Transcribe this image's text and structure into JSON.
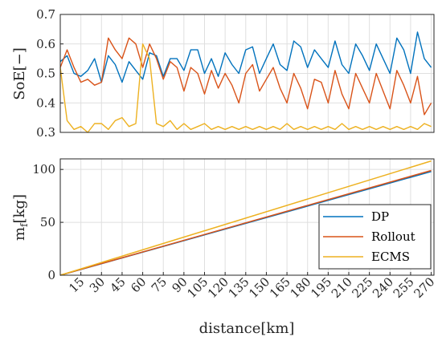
{
  "chart_data": [
    {
      "type": "line",
      "title": "",
      "xlabel": "",
      "ylabel": "SoE[−]",
      "xlim": [
        0,
        272
      ],
      "ylim": [
        0.3,
        0.7
      ],
      "y_ticks": [
        "0.3",
        "0.4",
        "0.5",
        "0.6",
        "0.7"
      ],
      "grid": true,
      "legend": "none",
      "x": [
        0,
        5,
        10,
        15,
        20,
        25,
        30,
        35,
        40,
        45,
        50,
        55,
        60,
        65,
        70,
        75,
        80,
        85,
        90,
        95,
        100,
        105,
        110,
        115,
        120,
        125,
        130,
        135,
        140,
        145,
        150,
        155,
        160,
        165,
        170,
        175,
        180,
        185,
        190,
        195,
        200,
        205,
        210,
        215,
        220,
        225,
        230,
        235,
        240,
        245,
        250,
        255,
        260,
        265,
        270
      ],
      "series": [
        {
          "color": "#0072BD",
          "values": [
            0.54,
            0.56,
            0.5,
            0.49,
            0.51,
            0.55,
            0.47,
            0.56,
            0.53,
            0.47,
            0.54,
            0.51,
            0.48,
            0.57,
            0.56,
            0.49,
            0.55,
            0.55,
            0.51,
            0.58,
            0.58,
            0.5,
            0.55,
            0.49,
            0.57,
            0.53,
            0.5,
            0.58,
            0.59,
            0.5,
            0.55,
            0.6,
            0.53,
            0.51,
            0.61,
            0.59,
            0.52,
            0.58,
            0.55,
            0.52,
            0.61,
            0.53,
            0.5,
            0.6,
            0.56,
            0.51,
            0.6,
            0.55,
            0.5,
            0.62,
            0.58,
            0.5,
            0.64,
            0.55,
            0.52
          ]
        },
        {
          "color": "#D95319",
          "values": [
            0.52,
            0.58,
            0.52,
            0.47,
            0.48,
            0.46,
            0.47,
            0.62,
            0.58,
            0.55,
            0.62,
            0.6,
            0.52,
            0.6,
            0.55,
            0.48,
            0.54,
            0.52,
            0.44,
            0.52,
            0.5,
            0.43,
            0.51,
            0.45,
            0.5,
            0.46,
            0.4,
            0.5,
            0.53,
            0.44,
            0.48,
            0.52,
            0.45,
            0.4,
            0.5,
            0.45,
            0.38,
            0.48,
            0.47,
            0.4,
            0.51,
            0.43,
            0.38,
            0.5,
            0.45,
            0.4,
            0.5,
            0.44,
            0.38,
            0.51,
            0.46,
            0.4,
            0.49,
            0.36,
            0.4
          ]
        },
        {
          "color": "#EDB120",
          "values": [
            0.52,
            0.34,
            0.31,
            0.32,
            0.3,
            0.33,
            0.33,
            0.31,
            0.34,
            0.35,
            0.32,
            0.33,
            0.6,
            0.55,
            0.33,
            0.32,
            0.34,
            0.31,
            0.33,
            0.31,
            0.32,
            0.33,
            0.31,
            0.32,
            0.31,
            0.32,
            0.31,
            0.32,
            0.31,
            0.32,
            0.31,
            0.32,
            0.31,
            0.33,
            0.31,
            0.32,
            0.31,
            0.32,
            0.31,
            0.32,
            0.31,
            0.33,
            0.31,
            0.32,
            0.31,
            0.32,
            0.31,
            0.32,
            0.31,
            0.32,
            0.31,
            0.32,
            0.31,
            0.33,
            0.32
          ]
        }
      ]
    },
    {
      "type": "line",
      "title": "",
      "xlabel": "distance[km]",
      "ylabel": "m_f[kg]",
      "xlim": [
        0,
        272
      ],
      "ylim": [
        0,
        110
      ],
      "x_ticks": [
        "15",
        "30",
        "45",
        "60",
        "75",
        "90",
        "105",
        "120",
        "135",
        "150",
        "165",
        "180",
        "195",
        "210",
        "225",
        "240",
        "255",
        "270"
      ],
      "y_ticks": [
        "0",
        "50",
        "100"
      ],
      "grid": true,
      "legend": "bottom-right",
      "x": [
        0,
        270
      ],
      "series": [
        {
          "name": "DP",
          "color": "#0072BD",
          "values": [
            0,
            98
          ]
        },
        {
          "name": "Rollout",
          "color": "#D95319",
          "values": [
            0,
            99
          ]
        },
        {
          "name": "ECMS",
          "color": "#EDB120",
          "values": [
            0,
            108
          ]
        }
      ]
    }
  ]
}
